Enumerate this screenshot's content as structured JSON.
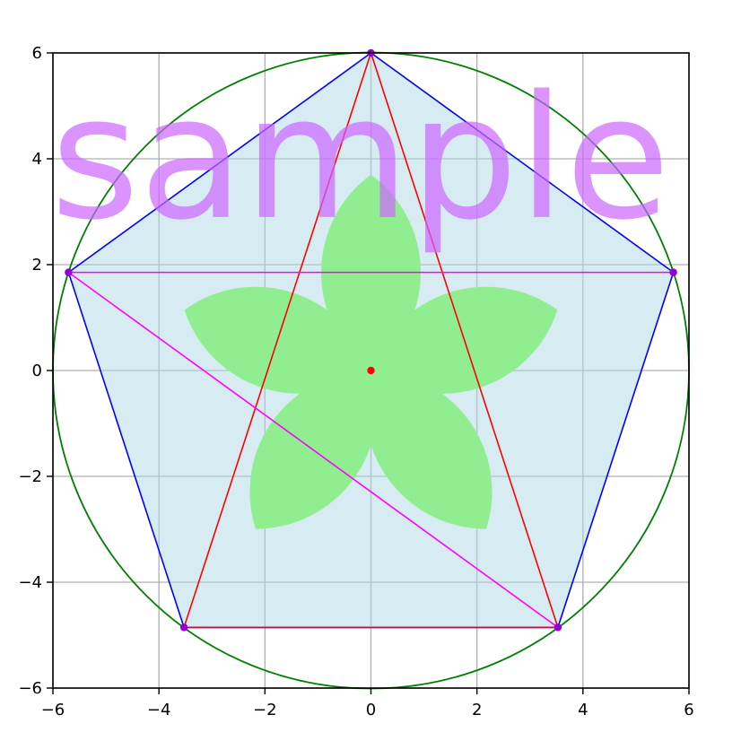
{
  "chart_data": {
    "type": "geometry",
    "xlim": [
      -6,
      6
    ],
    "ylim": [
      -6,
      6
    ],
    "grid": true,
    "x_ticks": [
      -6,
      -4,
      -2,
      0,
      2,
      4,
      6
    ],
    "y_ticks": [
      -6,
      -4,
      -2,
      0,
      2,
      4,
      6
    ],
    "x_tick_labels": [
      "−6",
      "−4",
      "−2",
      "0",
      "2",
      "4",
      "6"
    ],
    "y_tick_labels": [
      "−6",
      "−4",
      "−2",
      "0",
      "2",
      "4",
      "6"
    ],
    "circle": {
      "center": [
        0,
        0
      ],
      "radius": 6,
      "color": "#008000"
    },
    "pentagon": {
      "vertices": [
        [
          0,
          6
        ],
        [
          5.706,
          1.854
        ],
        [
          3.527,
          -4.854
        ],
        [
          -3.527,
          -4.854
        ],
        [
          -5.706,
          1.854
        ]
      ],
      "fill": "#add8e6",
      "edge_color": "#0000ff"
    },
    "triangle": {
      "vertices": [
        [
          0,
          6
        ],
        [
          3.527,
          -4.854
        ],
        [
          -3.527,
          -4.854
        ]
      ],
      "color": "#ff0000"
    },
    "magenta_lines": [
      {
        "from": [
          -5.706,
          1.854
        ],
        "to": [
          5.706,
          1.854
        ]
      },
      {
        "from": [
          -5.706,
          1.854
        ],
        "to": [
          3.527,
          -4.854
        ]
      }
    ],
    "line_color": "#ff00ff",
    "vertex_color": "#9400d3",
    "center_point": {
      "xy": [
        0,
        0
      ],
      "color": "#ff0000"
    },
    "flower": {
      "petals": 5,
      "center": [
        0,
        0
      ],
      "tip_radius": 3.7,
      "color": "#90ee90"
    },
    "annotation": {
      "text": "sample",
      "color": "#cc66ff"
    }
  }
}
